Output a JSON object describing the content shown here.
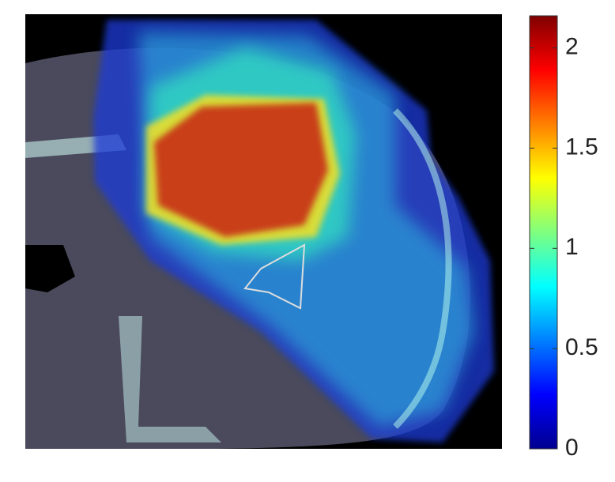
{
  "chart_data": {
    "type": "heatmap",
    "colorbar": {
      "lim": [
        0,
        2.16
      ],
      "ticks": [
        0,
        0.5,
        1,
        1.5,
        2
      ]
    }
  }
}
